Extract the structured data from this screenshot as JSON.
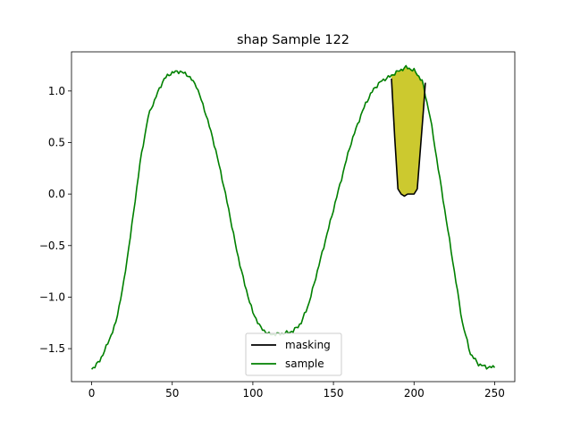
{
  "chart_data": {
    "type": "line",
    "title": "shap Sample 122",
    "xlabel": "",
    "ylabel": "",
    "xlim": [
      -12.5,
      262.5
    ],
    "ylim": [
      -1.82,
      1.38
    ],
    "xticks": [
      0,
      50,
      100,
      150,
      200,
      250
    ],
    "xtick_labels": [
      "0",
      "50",
      "100",
      "150",
      "200",
      "250"
    ],
    "yticks": [
      -1.5,
      -1.0,
      -0.5,
      0.0,
      0.5,
      1.0
    ],
    "ytick_labels": [
      "−1.5",
      "−1.0",
      "−0.5",
      "0.0",
      "0.5",
      "1.0"
    ],
    "grid": false,
    "legend_position": "lower center",
    "sample_curve": {
      "x": [
        0,
        5,
        10,
        15,
        20,
        25,
        30,
        35,
        40,
        45,
        50,
        55,
        60,
        65,
        70,
        75,
        80,
        85,
        90,
        95,
        100,
        105,
        110,
        115,
        120,
        125,
        130,
        135,
        140,
        145,
        150,
        155,
        160,
        165,
        170,
        175,
        180,
        185,
        190,
        195,
        200,
        205,
        210,
        215,
        220,
        225,
        230,
        235,
        240,
        245,
        250
      ],
      "y": [
        -1.7,
        -1.62,
        -1.45,
        -1.25,
        -0.85,
        -0.3,
        0.3,
        0.75,
        0.95,
        1.12,
        1.18,
        1.19,
        1.15,
        1.05,
        0.82,
        0.55,
        0.22,
        -0.15,
        -0.55,
        -0.88,
        -1.15,
        -1.3,
        -1.36,
        -1.36,
        -1.35,
        -1.33,
        -1.25,
        -1.05,
        -0.75,
        -0.45,
        -0.15,
        0.15,
        0.45,
        0.68,
        0.88,
        1.02,
        1.1,
        1.14,
        1.19,
        1.23,
        1.2,
        1.1,
        0.75,
        0.25,
        -0.25,
        -0.75,
        -1.25,
        -1.55,
        -1.65,
        -1.68,
        -1.68
      ]
    },
    "series": [
      {
        "name": "masking",
        "color": "#000000",
        "x": [
          186,
          188,
          190,
          192,
          194,
          196,
          198,
          200,
          202,
          204,
          206,
          207
        ],
        "y": [
          1.12,
          0.55,
          0.05,
          0.0,
          -0.02,
          0.0,
          0.0,
          0.0,
          0.05,
          0.45,
          0.85,
          1.08
        ]
      },
      {
        "name": "sample",
        "color": "#008000"
      }
    ],
    "fill_color": "#ccc92f"
  }
}
